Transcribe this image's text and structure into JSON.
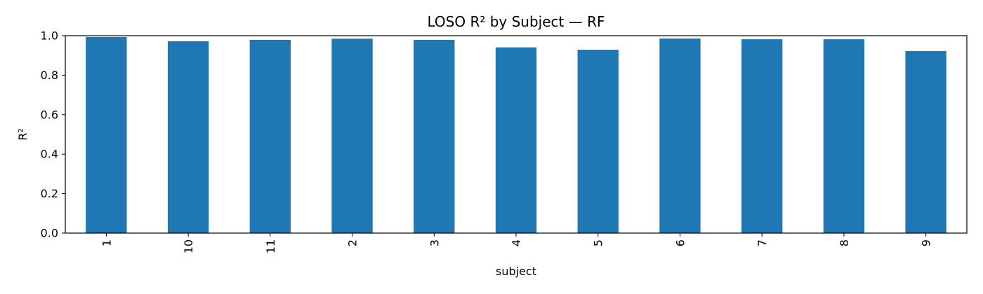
{
  "chart_data": {
    "type": "bar",
    "title": "LOSO R² by Subject — RF",
    "xlabel": "subject",
    "ylabel": "R²",
    "categories": [
      "1",
      "10",
      "11",
      "2",
      "3",
      "4",
      "5",
      "6",
      "7",
      "8",
      "9"
    ],
    "values": [
      0.993,
      0.972,
      0.979,
      0.985,
      0.979,
      0.941,
      0.929,
      0.986,
      0.982,
      0.982,
      0.922
    ],
    "ylim": [
      0.0,
      1.0
    ],
    "yticks": [
      "0.0",
      "0.2",
      "0.4",
      "0.6",
      "0.8",
      "1.0"
    ],
    "grid": false,
    "legend": "none",
    "bar_color": "#1f77b4"
  }
}
